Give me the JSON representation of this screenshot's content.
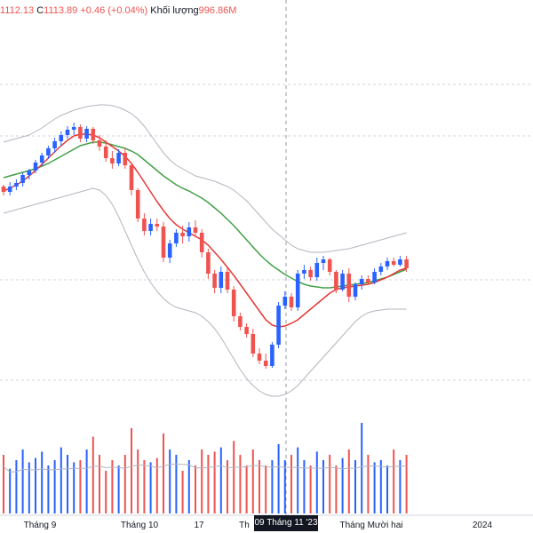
{
  "legend": {
    "h_value": "1112.13",
    "c_label": "C",
    "c_value": "1113.89",
    "change": "+0.46 (+0.04%)",
    "volume_label": "Khối lượng",
    "volume_value": "996.86M"
  },
  "crosshair_label": "09 Tháng 11 '23",
  "colors": {
    "up": "#2962ff",
    "down": "#ef5350",
    "ma_short": "#e53935",
    "ma_long": "#43a047",
    "band": "#b2b5be",
    "grid": "#d1d4dc"
  },
  "chart_data": {
    "type": "candlestick",
    "x_ticks": [
      "Tháng 9",
      "Tháng 10",
      "17",
      "Th",
      "Tháng Mười hai",
      "2024"
    ],
    "series": [
      {
        "name": "price",
        "candles": [
          [
            1160,
            1162,
            1150,
            1154
          ],
          [
            1154,
            1165,
            1150,
            1160
          ],
          [
            1160,
            1168,
            1156,
            1164
          ],
          [
            1164,
            1176,
            1160,
            1173
          ],
          [
            1173,
            1180,
            1168,
            1178
          ],
          [
            1178,
            1190,
            1175,
            1187
          ],
          [
            1187,
            1198,
            1183,
            1195
          ],
          [
            1195,
            1206,
            1191,
            1203
          ],
          [
            1203,
            1215,
            1198,
            1211
          ],
          [
            1211,
            1222,
            1205,
            1218
          ],
          [
            1218,
            1228,
            1214,
            1224
          ],
          [
            1224,
            1232,
            1218,
            1227
          ],
          [
            1227,
            1230,
            1210,
            1214
          ],
          [
            1214,
            1228,
            1210,
            1225
          ],
          [
            1225,
            1227,
            1208,
            1212
          ],
          [
            1212,
            1218,
            1200,
            1205
          ],
          [
            1205,
            1212,
            1188,
            1192
          ],
          [
            1192,
            1200,
            1180,
            1186
          ],
          [
            1186,
            1202,
            1183,
            1198
          ],
          [
            1198,
            1204,
            1180,
            1184
          ],
          [
            1184,
            1186,
            1150,
            1156
          ],
          [
            1156,
            1158,
            1120,
            1124
          ],
          [
            1124,
            1130,
            1105,
            1110
          ],
          [
            1110,
            1124,
            1105,
            1118
          ],
          [
            1118,
            1124,
            1110,
            1115
          ],
          [
            1115,
            1120,
            1075,
            1080
          ],
          [
            1080,
            1100,
            1074,
            1096
          ],
          [
            1096,
            1112,
            1092,
            1108
          ],
          [
            1108,
            1116,
            1096,
            1104
          ],
          [
            1104,
            1120,
            1098,
            1114
          ],
          [
            1114,
            1122,
            1104,
            1108
          ],
          [
            1108,
            1112,
            1080,
            1086
          ],
          [
            1086,
            1090,
            1056,
            1062
          ],
          [
            1062,
            1066,
            1040,
            1046
          ],
          [
            1046,
            1070,
            1040,
            1064
          ],
          [
            1064,
            1068,
            1040,
            1044
          ],
          [
            1044,
            1048,
            1008,
            1014
          ],
          [
            1014,
            1018,
            998,
            1002
          ],
          [
            1002,
            1006,
            990,
            994
          ],
          [
            994,
            1000,
            968,
            972
          ],
          [
            972,
            978,
            960,
            964
          ],
          [
            964,
            972,
            955,
            958
          ],
          [
            958,
            985,
            956,
            982
          ],
          [
            982,
            1030,
            978,
            1026
          ],
          [
            1026,
            1042,
            1022,
            1036
          ],
          [
            1036,
            1040,
            1020,
            1024
          ],
          [
            1024,
            1066,
            1020,
            1062
          ],
          [
            1062,
            1072,
            1056,
            1066
          ],
          [
            1066,
            1070,
            1054,
            1058
          ],
          [
            1058,
            1080,
            1054,
            1074
          ],
          [
            1074,
            1082,
            1066,
            1078
          ],
          [
            1078,
            1080,
            1060,
            1064
          ],
          [
            1064,
            1066,
            1040,
            1044
          ],
          [
            1044,
            1066,
            1042,
            1062
          ],
          [
            1062,
            1068,
            1030,
            1036
          ],
          [
            1036,
            1052,
            1032,
            1050
          ],
          [
            1050,
            1060,
            1044,
            1056
          ],
          [
            1056,
            1060,
            1050,
            1052
          ],
          [
            1052,
            1068,
            1050,
            1064
          ],
          [
            1064,
            1074,
            1060,
            1070
          ],
          [
            1070,
            1080,
            1066,
            1076
          ],
          [
            1076,
            1080,
            1070,
            1072
          ],
          [
            1072,
            1082,
            1070,
            1078
          ],
          [
            1078,
            1082,
            1064,
            1068
          ]
        ]
      },
      {
        "name": "ma20",
        "values": [
          1170,
          1172,
          1174,
          1176,
          1178,
          1180,
          1183,
          1186,
          1190,
          1194,
          1198,
          1202,
          1206,
          1208,
          1210,
          1210,
          1209,
          1207,
          1205,
          1203,
          1200,
          1196,
          1190,
          1184,
          1178,
          1172,
          1167,
          1162,
          1158,
          1155,
          1151,
          1147,
          1142,
          1136,
          1130,
          1123,
          1116,
          1108,
          1100,
          1092,
          1084,
          1077,
          1071,
          1066,
          1061,
          1057,
          1053,
          1050,
          1048,
          1047,
          1046,
          1046,
          1047,
          1048,
          1049,
          1050,
          1051,
          1052,
          1054,
          1056,
          1058,
          1061,
          1064,
          1067
        ]
      },
      {
        "name": "ma9",
        "values": [
          1155,
          1158,
          1162,
          1166,
          1172,
          1178,
          1185,
          1192,
          1199,
          1206,
          1212,
          1217,
          1219,
          1219,
          1218,
          1215,
          1210,
          1205,
          1200,
          1194,
          1186,
          1176,
          1165,
          1154,
          1143,
          1133,
          1124,
          1117,
          1112,
          1108,
          1104,
          1100,
          1094,
          1086,
          1078,
          1069,
          1060,
          1050,
          1040,
          1030,
          1020,
          1010,
          1004,
          1002,
          1003,
          1006,
          1010,
          1016,
          1022,
          1028,
          1034,
          1040,
          1044,
          1046,
          1047,
          1048,
          1049,
          1050,
          1052,
          1055,
          1058,
          1062,
          1066,
          1068
        ]
      },
      {
        "name": "bb_upper",
        "values": [
          1210,
          1212,
          1214,
          1216,
          1218,
          1222,
          1226,
          1231,
          1236,
          1240,
          1243,
          1246,
          1248,
          1250,
          1251,
          1252,
          1252,
          1251,
          1249,
          1246,
          1242,
          1236,
          1228,
          1218,
          1208,
          1198,
          1190,
          1184,
          1180,
          1176,
          1172,
          1170,
          1168,
          1166,
          1163,
          1160,
          1156,
          1150,
          1144,
          1136,
          1128,
          1120,
          1112,
          1106,
          1100,
          1094,
          1090,
          1088,
          1086,
          1086,
          1086,
          1087,
          1088,
          1089,
          1090,
          1092,
          1094,
          1096,
          1098,
          1100,
          1102,
          1104,
          1106,
          1108
        ]
      },
      {
        "name": "bb_lower",
        "values": [
          1130,
          1132,
          1134,
          1136,
          1138,
          1140,
          1142,
          1144,
          1146,
          1148,
          1150,
          1152,
          1154,
          1156,
          1158,
          1156,
          1150,
          1140,
          1126,
          1110,
          1094,
          1078,
          1064,
          1052,
          1042,
          1034,
          1028,
          1024,
          1022,
          1020,
          1018,
          1014,
          1008,
          1000,
          990,
          978,
          966,
          954,
          944,
          936,
          930,
          926,
          924,
          924,
          926,
          930,
          936,
          944,
          952,
          960,
          968,
          976,
          984,
          992,
          1000,
          1008,
          1014,
          1018,
          1020,
          1021,
          1022,
          1022,
          1022,
          1022
        ]
      },
      {
        "name": "volume",
        "values": [
          0.55,
          0.42,
          0.5,
          0.6,
          0.48,
          0.52,
          0.58,
          0.45,
          0.5,
          0.62,
          0.55,
          0.48,
          0.5,
          0.6,
          0.72,
          0.55,
          0.4,
          0.5,
          0.45,
          0.55,
          0.8,
          0.6,
          0.5,
          0.48,
          0.52,
          0.75,
          0.6,
          0.55,
          0.4,
          0.5,
          0.45,
          0.6,
          0.55,
          0.58,
          0.62,
          0.5,
          0.68,
          0.55,
          0.45,
          0.6,
          0.5,
          0.45,
          0.5,
          0.65,
          0.5,
          0.55,
          0.62,
          0.5,
          0.45,
          0.58,
          0.5,
          0.55,
          0.45,
          0.52,
          0.6,
          0.5,
          0.85,
          0.55,
          0.48,
          0.5,
          0.45,
          0.6,
          0.5,
          0.55
        ]
      }
    ]
  }
}
